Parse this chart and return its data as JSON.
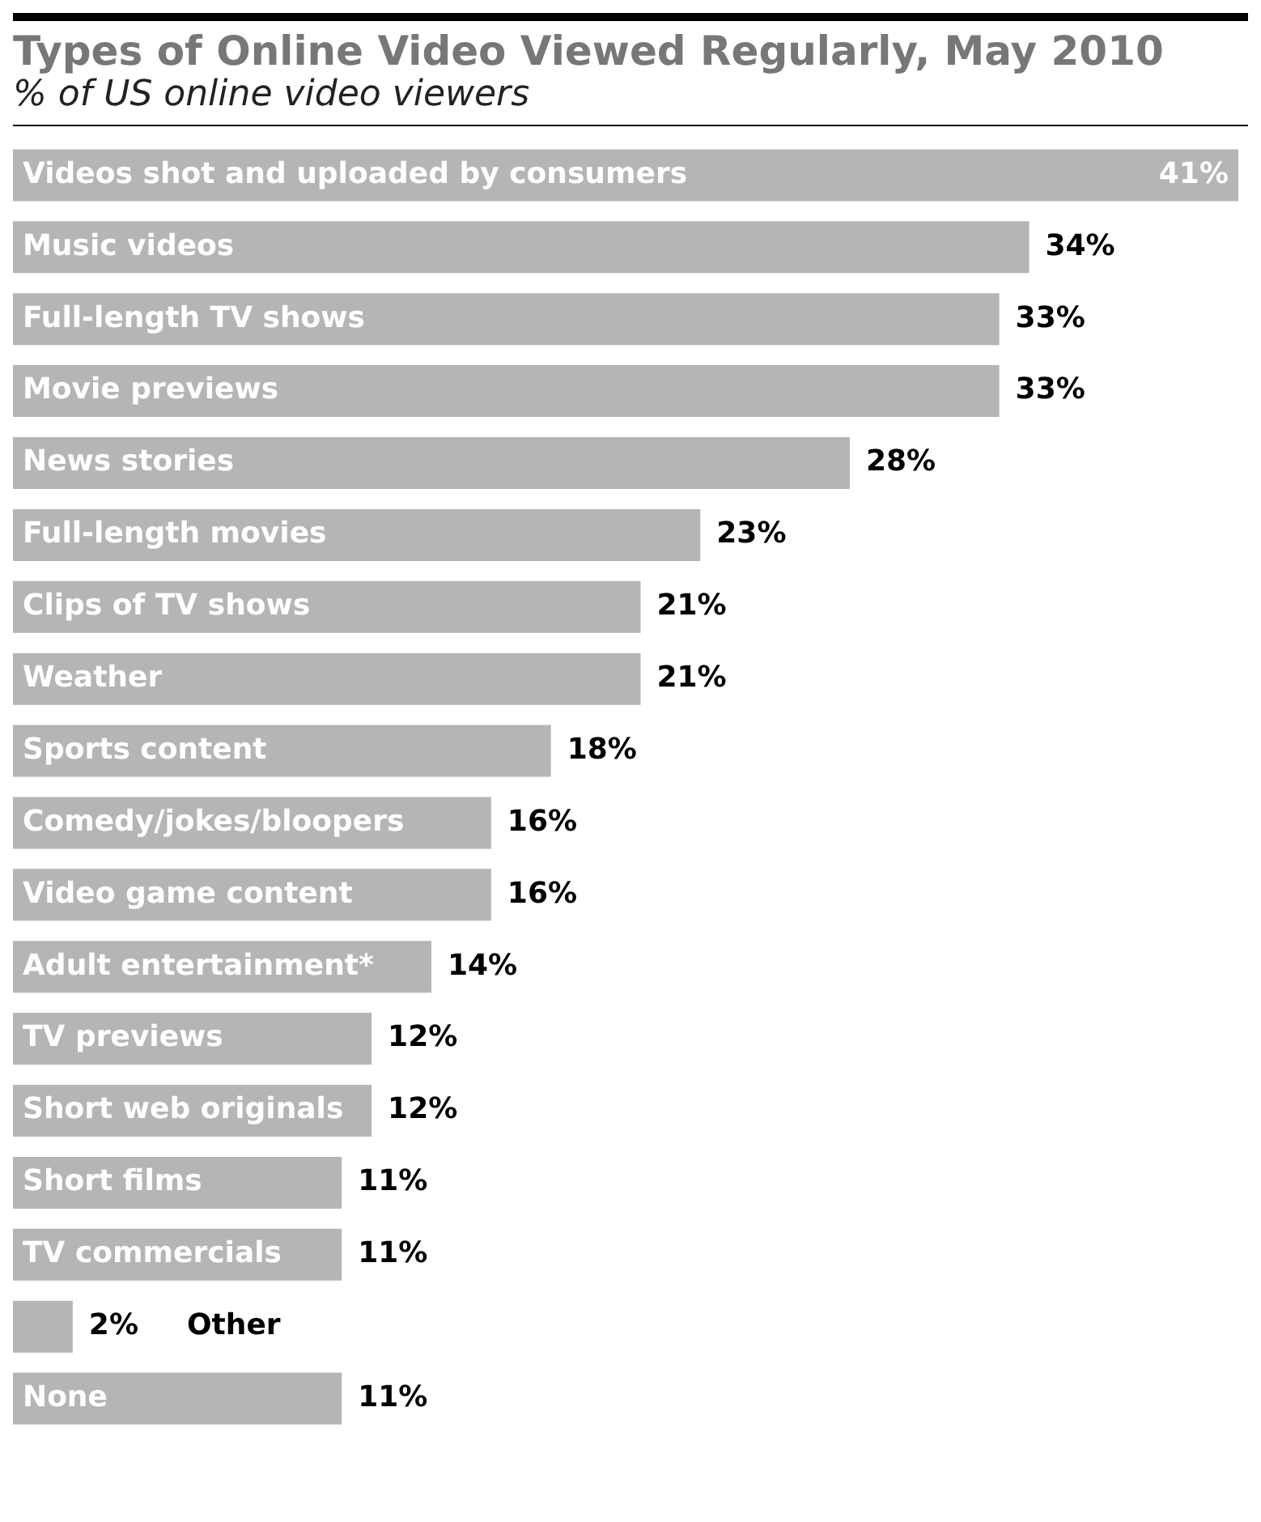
{
  "chart_data": {
    "type": "bar",
    "orientation": "horizontal",
    "title": "Types of Online Video Viewed Regularly, May 2010",
    "subtitle": "% of US online video viewers",
    "categories": [
      "Videos shot and uploaded by consumers",
      "Music videos",
      "Full-length TV shows",
      "Movie previews",
      "News stories",
      "Full-length movies",
      "Clips of TV shows",
      "Weather",
      "Sports content",
      "Comedy/jokes/bloopers",
      "Video game content",
      "Adult entertainment*",
      "TV previews",
      "Short web originals",
      "Short films",
      "TV commercials",
      "Other",
      "None"
    ],
    "values": [
      41,
      34,
      33,
      33,
      28,
      23,
      21,
      21,
      18,
      16,
      16,
      14,
      12,
      12,
      11,
      11,
      2,
      11
    ],
    "value_labels": [
      "41%",
      "34%",
      "33%",
      "33%",
      "28%",
      "23%",
      "21%",
      "21%",
      "18%",
      "16%",
      "16%",
      "14%",
      "12%",
      "12%",
      "11%",
      "11%",
      "2%",
      "11%"
    ],
    "color": "#b5b5b5",
    "xlim": [
      0,
      41
    ],
    "tick_labels": false,
    "legend": false
  }
}
